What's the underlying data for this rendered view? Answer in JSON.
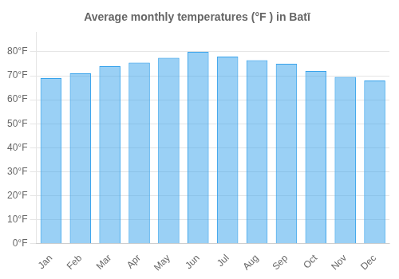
{
  "chart_data": {
    "type": "bar",
    "title": "Average monthly temperatures (°F ) in Batī",
    "categories": [
      "Jan",
      "Feb",
      "Mar",
      "Apr",
      "May",
      "Jun",
      "Jul",
      "Aug",
      "Sep",
      "Oct",
      "Nov",
      "Dec"
    ],
    "values": [
      69,
      71,
      74,
      75.5,
      77.5,
      80,
      78,
      76.5,
      75,
      72,
      69.5,
      68
    ],
    "ylim": [
      0,
      88
    ],
    "yticks": [
      {
        "value": 0,
        "label": "0°F"
      },
      {
        "value": 10,
        "label": "10°F"
      },
      {
        "value": 20,
        "label": "20°F"
      },
      {
        "value": 30,
        "label": "30°F"
      },
      {
        "value": 40,
        "label": "40°F"
      },
      {
        "value": 50,
        "label": "50°F"
      },
      {
        "value": 60,
        "label": "60°F"
      },
      {
        "value": 70,
        "label": "70°F"
      },
      {
        "value": 80,
        "label": "80°F"
      }
    ],
    "grid": true
  }
}
